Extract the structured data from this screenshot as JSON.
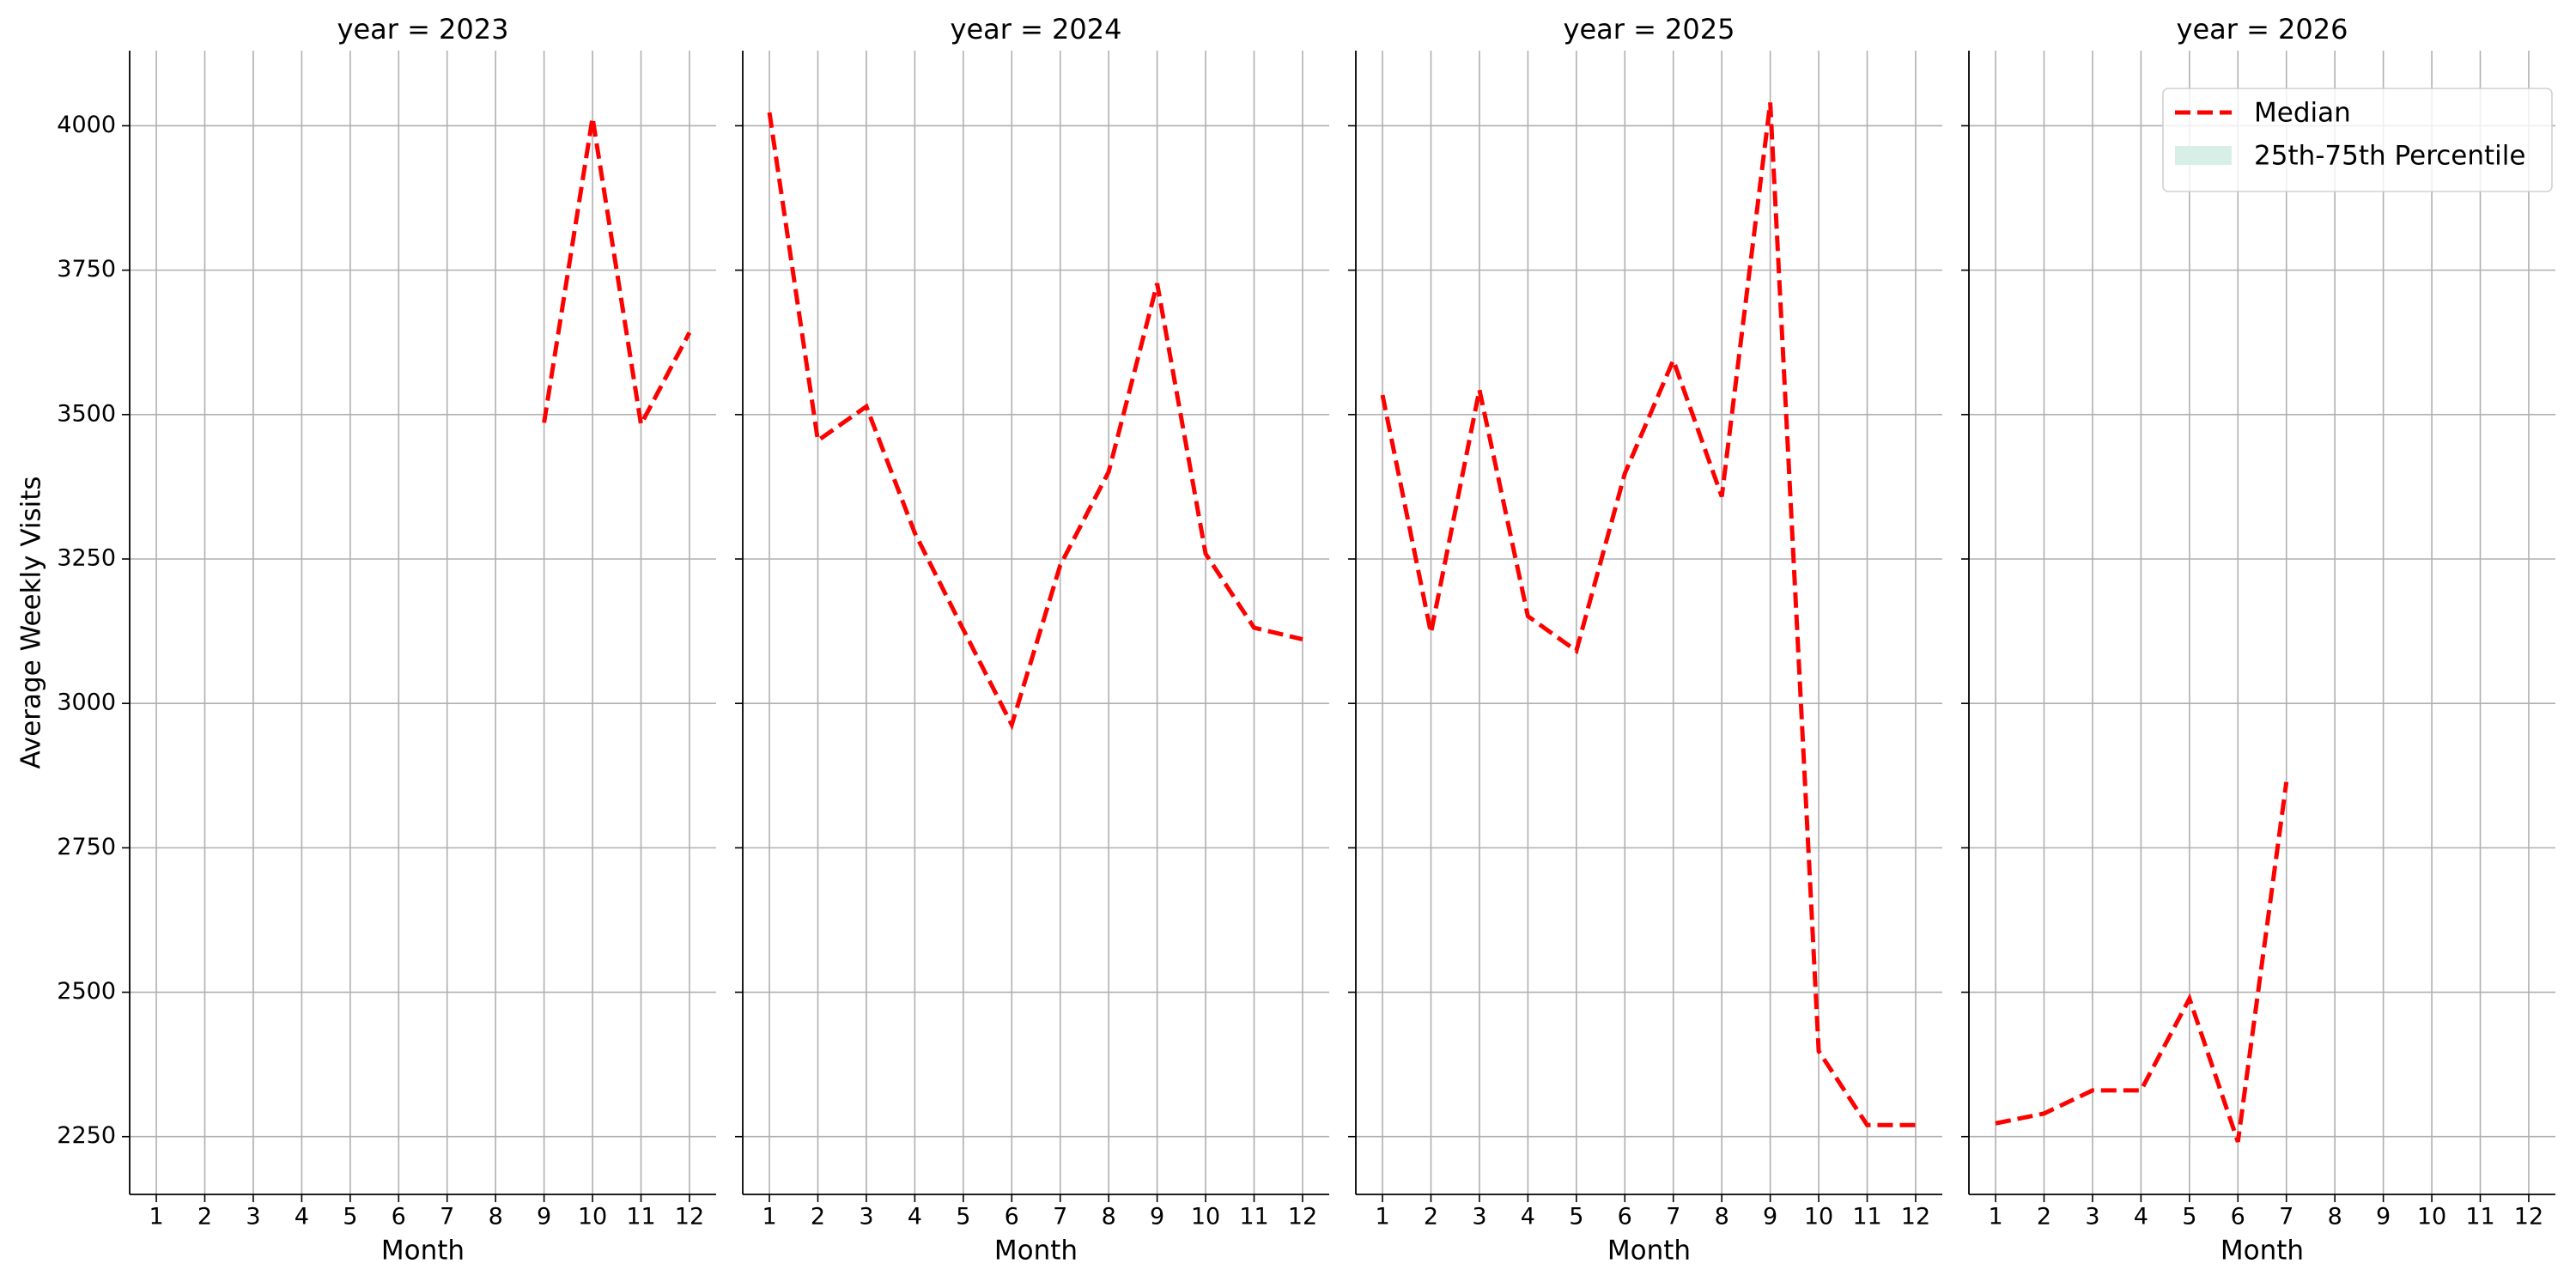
{
  "chart_data": [
    {
      "type": "line",
      "title": "year = 2023",
      "xlabel": "Month",
      "ylabel": "Average Weekly Visits",
      "x": [
        1,
        2,
        3,
        4,
        5,
        6,
        7,
        8,
        9,
        10,
        11,
        12
      ],
      "series": [
        {
          "color": "#ff0000",
          "values": [
            null,
            null,
            null,
            null,
            null,
            null,
            null,
            null,
            3486,
            4014,
            3483,
            3642
          ]
        }
      ],
      "xlim": [
        0.45,
        12.55
      ],
      "ylim": [
        2150,
        4130
      ],
      "xticks": [
        1,
        2,
        3,
        4,
        5,
        6,
        7,
        8,
        9,
        10,
        11,
        12
      ],
      "yticks": [
        2250,
        2500,
        2750,
        3000,
        3250,
        3500,
        3750,
        4000
      ],
      "ytick_labels": true,
      "grid": true
    },
    {
      "type": "line",
      "title": "year = 2024",
      "xlabel": "Month",
      "x": [
        1,
        2,
        3,
        4,
        5,
        6,
        7,
        8,
        9,
        10,
        11,
        12
      ],
      "series": [
        {
          "color": "#ff0000",
          "values": [
            4023,
            3455,
            3514,
            3295,
            3128,
            2963,
            3239,
            3401,
            3727,
            3259,
            3131,
            3111
          ]
        }
      ],
      "xlim": [
        0.45,
        12.55
      ],
      "ylim": [
        2150,
        4130
      ],
      "xticks": [
        1,
        2,
        3,
        4,
        5,
        6,
        7,
        8,
        9,
        10,
        11,
        12
      ],
      "yticks": [
        2250,
        2500,
        2750,
        3000,
        3250,
        3500,
        3750,
        4000
      ],
      "ytick_labels": false,
      "grid": true
    },
    {
      "type": "line",
      "title": "year = 2025",
      "xlabel": "Month",
      "x": [
        1,
        2,
        3,
        4,
        5,
        6,
        7,
        8,
        9,
        10,
        11,
        12
      ],
      "series": [
        {
          "color": "#ff0000",
          "values": [
            3534,
            3122,
            3543,
            3151,
            3091,
            3398,
            3594,
            3358,
            4040,
            2398,
            2270,
            2270
          ]
        }
      ],
      "xlim": [
        0.45,
        12.55
      ],
      "ylim": [
        2150,
        4130
      ],
      "xticks": [
        1,
        2,
        3,
        4,
        5,
        6,
        7,
        8,
        9,
        10,
        11,
        12
      ],
      "yticks": [
        2250,
        2500,
        2750,
        3000,
        3250,
        3500,
        3750,
        4000
      ],
      "ytick_labels": false,
      "grid": true
    },
    {
      "type": "line",
      "title": "year = 2026",
      "xlabel": "Month",
      "x": [
        1,
        2,
        3,
        4,
        5,
        6,
        7,
        8,
        9,
        10,
        11,
        12
      ],
      "series": [
        {
          "name": "Median",
          "color": "#ff0000",
          "values": [
            2273,
            2290,
            2330,
            2330,
            2489,
            2241,
            2864,
            null,
            null,
            null,
            null,
            null
          ]
        }
      ],
      "legend_patches": [
        {
          "name": "25th-75th Percentile",
          "color": "#d8efe7"
        }
      ],
      "legend": "upper right",
      "xlim": [
        0.45,
        12.55
      ],
      "ylim": [
        2150,
        4130
      ],
      "xticks": [
        1,
        2,
        3,
        4,
        5,
        6,
        7,
        8,
        9,
        10,
        11,
        12
      ],
      "yticks": [
        2250,
        2500,
        2750,
        3000,
        3250,
        3500,
        3750,
        4000
      ],
      "ytick_labels": false,
      "grid": true
    }
  ]
}
